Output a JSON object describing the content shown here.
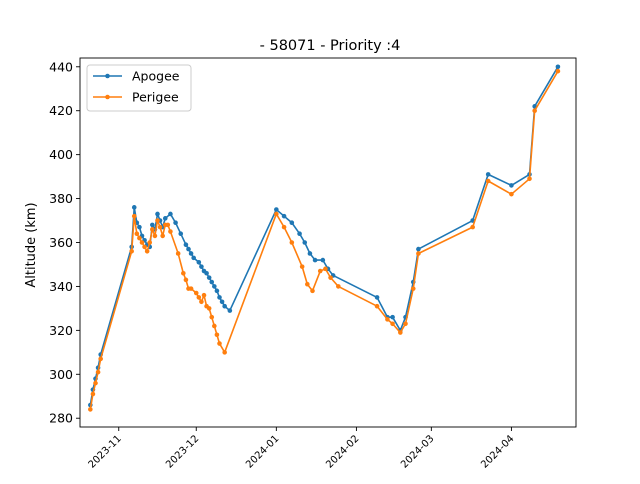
{
  "chart_data": {
    "type": "line",
    "title": "- 58071 - Priority :4",
    "xlabel": "",
    "ylabel": "Altitude (km)",
    "ylim": [
      276,
      444
    ],
    "xlim": [
      "2023-10-17",
      "2024-04-26"
    ],
    "yticks": [
      280,
      300,
      320,
      340,
      360,
      380,
      400,
      420,
      440
    ],
    "xticks": [
      "2023-11-01",
      "2023-12-01",
      "2024-01-01",
      "2024-02-01",
      "2024-03-01",
      "2024-04-01"
    ],
    "xtick_labels": [
      "2023-11",
      "2023-12",
      "2024-01",
      "2024-02",
      "2024-03",
      "2024-04"
    ],
    "grid": false,
    "legend_position": "upper-left",
    "series": [
      {
        "name": "Apogee",
        "color": "#1f77b4",
        "points": [
          [
            "2023-10-21",
            286
          ],
          [
            "2023-10-22",
            293
          ],
          [
            "2023-10-23",
            298
          ],
          [
            "2023-10-24",
            303
          ],
          [
            "2023-10-25",
            309
          ],
          [
            "2023-11-06",
            358
          ],
          [
            "2023-11-07",
            376
          ],
          [
            "2023-11-08",
            369
          ],
          [
            "2023-11-09",
            367
          ],
          [
            "2023-11-10",
            363
          ],
          [
            "2023-11-11",
            361
          ],
          [
            "2023-11-12",
            359
          ],
          [
            "2023-11-13",
            358
          ],
          [
            "2023-11-14",
            368
          ],
          [
            "2023-11-15",
            366
          ],
          [
            "2023-11-16",
            373
          ],
          [
            "2023-11-17",
            370
          ],
          [
            "2023-11-18",
            367
          ],
          [
            "2023-11-19",
            371
          ],
          [
            "2023-11-21",
            373
          ],
          [
            "2023-11-23",
            369
          ],
          [
            "2023-11-25",
            364
          ],
          [
            "2023-11-27",
            359
          ],
          [
            "2023-11-28",
            357
          ],
          [
            "2023-11-29",
            355
          ],
          [
            "2023-11-30",
            353
          ],
          [
            "2023-12-02",
            351
          ],
          [
            "2023-12-03",
            349
          ],
          [
            "2023-12-04",
            347
          ],
          [
            "2023-12-05",
            346
          ],
          [
            "2023-12-06",
            344
          ],
          [
            "2023-12-07",
            342
          ],
          [
            "2023-12-08",
            340
          ],
          [
            "2023-12-09",
            338
          ],
          [
            "2023-12-10",
            335
          ],
          [
            "2023-12-11",
            333
          ],
          [
            "2023-12-12",
            331
          ],
          [
            "2023-12-14",
            329
          ],
          [
            "2024-01-01",
            375
          ],
          [
            "2024-01-04",
            372
          ],
          [
            "2024-01-07",
            369
          ],
          [
            "2024-01-10",
            364
          ],
          [
            "2024-01-12",
            360
          ],
          [
            "2024-01-14",
            355
          ],
          [
            "2024-01-16",
            352
          ],
          [
            "2024-01-19",
            352
          ],
          [
            "2024-01-21",
            348
          ],
          [
            "2024-01-23",
            345
          ],
          [
            "2024-02-09",
            335
          ],
          [
            "2024-02-13",
            326
          ],
          [
            "2024-02-15",
            326
          ],
          [
            "2024-02-18",
            320
          ],
          [
            "2024-02-20",
            326
          ],
          [
            "2024-02-23",
            342
          ],
          [
            "2024-02-25",
            357
          ],
          [
            "2024-03-17",
            370
          ],
          [
            "2024-03-23",
            391
          ],
          [
            "2024-04-01",
            386
          ],
          [
            "2024-04-08",
            391
          ],
          [
            "2024-04-10",
            422
          ],
          [
            "2024-04-19",
            440
          ]
        ]
      },
      {
        "name": "Perigee",
        "color": "#ff7f0e",
        "points": [
          [
            "2023-10-21",
            284
          ],
          [
            "2023-10-22",
            291
          ],
          [
            "2023-10-23",
            296
          ],
          [
            "2023-10-24",
            301
          ],
          [
            "2023-10-25",
            307
          ],
          [
            "2023-11-06",
            356
          ],
          [
            "2023-11-07",
            372
          ],
          [
            "2023-11-08",
            364
          ],
          [
            "2023-11-09",
            362
          ],
          [
            "2023-11-10",
            360
          ],
          [
            "2023-11-11",
            358
          ],
          [
            "2023-11-12",
            356
          ],
          [
            "2023-11-13",
            360
          ],
          [
            "2023-11-14",
            366
          ],
          [
            "2023-11-15",
            363
          ],
          [
            "2023-11-16",
            370
          ],
          [
            "2023-11-17",
            367
          ],
          [
            "2023-11-18",
            363
          ],
          [
            "2023-11-19",
            368
          ],
          [
            "2023-11-20",
            368
          ],
          [
            "2023-11-21",
            365
          ],
          [
            "2023-11-24",
            355
          ],
          [
            "2023-11-26",
            346
          ],
          [
            "2023-11-27",
            343
          ],
          [
            "2023-11-28",
            339
          ],
          [
            "2023-11-29",
            339
          ],
          [
            "2023-12-01",
            337
          ],
          [
            "2023-12-02",
            335
          ],
          [
            "2023-12-03",
            333
          ],
          [
            "2023-12-04",
            336
          ],
          [
            "2023-12-05",
            331
          ],
          [
            "2023-12-06",
            330
          ],
          [
            "2023-12-07",
            326
          ],
          [
            "2023-12-08",
            322
          ],
          [
            "2023-12-09",
            318
          ],
          [
            "2023-12-10",
            314
          ],
          [
            "2023-12-12",
            310
          ],
          [
            "2024-01-01",
            373
          ],
          [
            "2024-01-04",
            367
          ],
          [
            "2024-01-07",
            360
          ],
          [
            "2024-01-11",
            349
          ],
          [
            "2024-01-13",
            341
          ],
          [
            "2024-01-15",
            338
          ],
          [
            "2024-01-18",
            347
          ],
          [
            "2024-01-20",
            348
          ],
          [
            "2024-01-22",
            344
          ],
          [
            "2024-01-25",
            340
          ],
          [
            "2024-02-09",
            331
          ],
          [
            "2024-02-13",
            325
          ],
          [
            "2024-02-15",
            323
          ],
          [
            "2024-02-18",
            319
          ],
          [
            "2024-02-20",
            323
          ],
          [
            "2024-02-23",
            339
          ],
          [
            "2024-02-25",
            355
          ],
          [
            "2024-03-17",
            367
          ],
          [
            "2024-03-23",
            388
          ],
          [
            "2024-04-01",
            382
          ],
          [
            "2024-04-08",
            389
          ],
          [
            "2024-04-10",
            420
          ],
          [
            "2024-04-19",
            438
          ]
        ]
      }
    ]
  }
}
